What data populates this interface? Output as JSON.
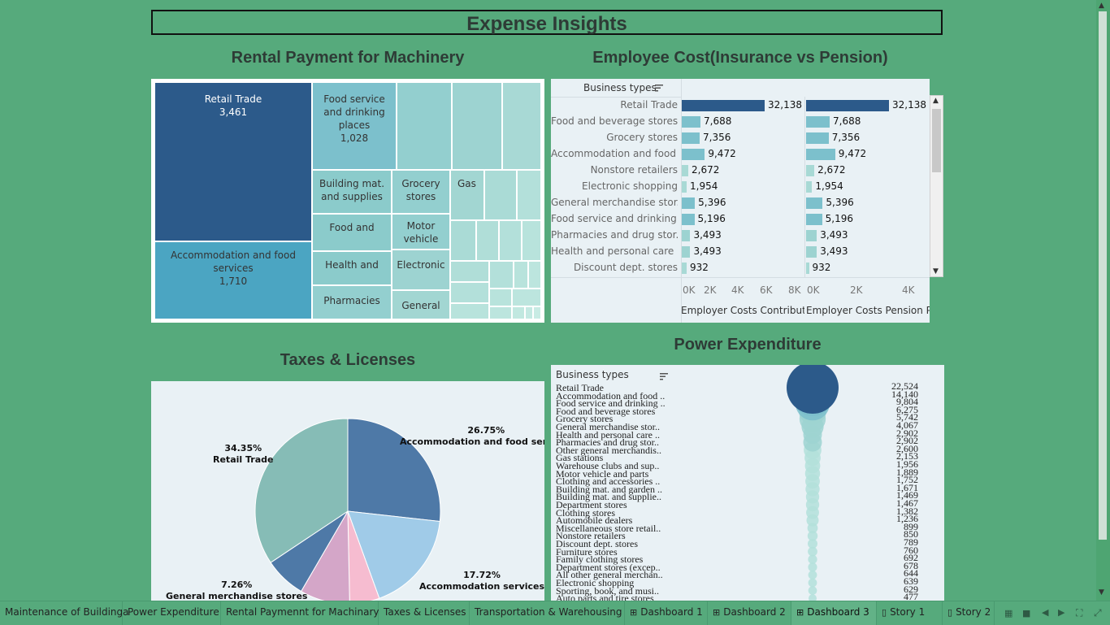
{
  "dashboard_title": "Expense Insights",
  "sections": {
    "rental": "Rental Payment for Machinery",
    "employee": "Employee Cost(Insurance vs Pension)",
    "taxes": "Taxes & Licenses",
    "power": "Power Expenditure"
  },
  "treemap": {
    "retail": {
      "label": "Retail Trade",
      "value": "3,461"
    },
    "accommodation": {
      "label": "Accommodation and food services",
      "value": "1,710"
    },
    "food_service": {
      "label": "Food service and drinking places",
      "value": "1,028"
    },
    "building": "Building mat. and supplies",
    "grocery": "Grocery stores",
    "gas": "Gas",
    "food_and": "Food and",
    "motor": "Motor vehicle",
    "health": "Health and",
    "electronic": "Electronic",
    "pharmacies": "Pharmacies",
    "general": "General"
  },
  "employee_panel": {
    "header": "Business types",
    "axis1_label": "Employer Costs Contribut..",
    "axis2_label": "Employer Costs Pension P..",
    "axis1_ticks": [
      "0K",
      "2K",
      "4K",
      "6K",
      "8K"
    ],
    "axis2_ticks": [
      "0K",
      "2K",
      "4K"
    ]
  },
  "chart_data": [
    {
      "type": "bar",
      "title": "Employee Cost(Insurance vs Pension)",
      "categories": [
        "Retail Trade",
        "Food and beverage stores",
        "Grocery stores",
        "Accommodation and food ..",
        "Nonstore retailers",
        "Electronic shopping",
        "General merchandise stor..",
        "Food service and drinking ..",
        "Pharmacies and drug stor..",
        "Health and personal care ..",
        "Discount dept. stores"
      ],
      "series": [
        {
          "name": "Employer Costs Contribut..",
          "values": [
            32138,
            7688,
            7356,
            9472,
            2672,
            1954,
            5396,
            5196,
            3493,
            3493,
            932
          ],
          "display": [
            "32,138",
            "7,688",
            "7,356",
            "9,472",
            "2,672",
            "1,954",
            "5,396",
            "5,196",
            "3,493",
            "3,493",
            "932"
          ]
        },
        {
          "name": "Employer Costs Pension P..",
          "values": [
            32138,
            7688,
            7356,
            9472,
            2672,
            1954,
            5396,
            5196,
            3493,
            3493,
            932
          ],
          "display": [
            "32,138",
            "7,688",
            "7,356",
            "9,472",
            "2,672",
            "1,954",
            "5,396",
            "5,196",
            "3,493",
            "3,493",
            "932"
          ]
        }
      ]
    },
    {
      "type": "pie",
      "title": "Taxes & Licenses",
      "slices": [
        {
          "label": "Accommodation and food services",
          "pct": "26.75%",
          "value": 26.75,
          "color": "#4e79a7"
        },
        {
          "label": "Accommodation services",
          "pct": "17.72%",
          "value": 17.72,
          "color": "#a0cbe8"
        },
        {
          "label": "",
          "pct": "",
          "value": 5.2,
          "color": "#f6bcd0"
        },
        {
          "label": "",
          "pct": "",
          "value": 8.72,
          "color": "#d4a6c8"
        },
        {
          "label": "General merchandise stores",
          "pct": "7.26%",
          "value": 7.26,
          "color": "#4e79a7"
        },
        {
          "label": "Retail Trade",
          "pct": "34.35%",
          "value": 34.35,
          "color": "#86bcb6"
        }
      ]
    },
    {
      "type": "scatter",
      "title": "Power Expenditure",
      "header": "Business types",
      "categories": [
        "Retail Trade",
        "Accommodation and food ..",
        "Food service and drinking ..",
        "Food and beverage stores",
        "Grocery stores",
        "General merchandise stor..",
        "Health and personal care ..",
        "Pharmacies and drug stor..",
        "Other general merchandis..",
        "Gas stations",
        "Warehouse clubs and sup..",
        "Motor vehicle and parts",
        "Clothing and accessories ..",
        "Building mat. and garden ..",
        "Building mat. and supplie..",
        "Department stores",
        "Clothing stores",
        "Automobile dealers",
        "Miscellaneous store retail..",
        "Nonstore retailers",
        "Discount dept. stores",
        "Furniture stores",
        "Family clothing stores",
        "Department stores (excep..",
        "All other general merchan..",
        "Electronic shopping",
        "Sporting, book, and musi..",
        "Auto parts and tire stores"
      ],
      "values": [
        22524,
        14140,
        9804,
        6275,
        5742,
        4067,
        2902,
        2902,
        2600,
        2153,
        1956,
        1889,
        1752,
        1671,
        1469,
        1467,
        1382,
        1236,
        899,
        850,
        789,
        760,
        692,
        678,
        644,
        639,
        629,
        477
      ],
      "display": [
        "22,524",
        "14,140",
        "9,804",
        "6,275",
        "5,742",
        "4,067",
        "2,902",
        "2,902",
        "2,600",
        "2,153",
        "1,956",
        "1,889",
        "1,752",
        "1,671",
        "1,469",
        "1,467",
        "1,382",
        "1,236",
        "899",
        "850",
        "789",
        "760",
        "692",
        "678",
        "644",
        "639",
        "629",
        "477"
      ]
    }
  ],
  "tabs": [
    "Maintenance of Buildinga",
    "Power Expenditure",
    "Rental Paymennt for Machinary",
    "Taxes & Licenses",
    "Transportation & Warehousing",
    "Dashboard 1",
    "Dashboard 2",
    "Dashboard 3",
    "Story 1",
    "Story 2"
  ],
  "active_tab": "Dashboard 3"
}
